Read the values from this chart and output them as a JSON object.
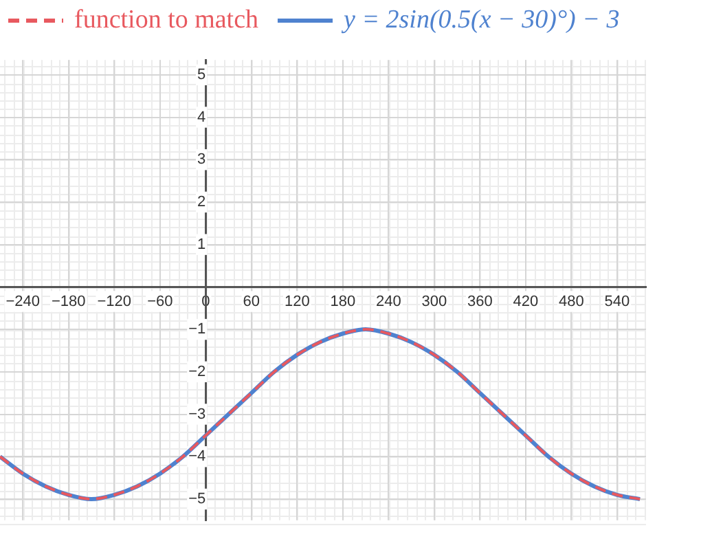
{
  "chart_data": {
    "type": "line",
    "x": [
      -270,
      -240,
      -210,
      -180,
      -150,
      -120,
      -90,
      -60,
      -30,
      0,
      30,
      60,
      90,
      120,
      150,
      180,
      210,
      240,
      270,
      300,
      330,
      360,
      390,
      420,
      450,
      480,
      510,
      540,
      570
    ],
    "series": [
      {
        "name": "function to match",
        "color": "#e8595f",
        "line_style": "dashed",
        "values": [
          -4,
          -4.4,
          -4.7,
          -4.9,
          -5,
          -4.9,
          -4.7,
          -4.4,
          -4,
          -3.5,
          -3,
          -2.5,
          -2,
          -1.6,
          -1.3,
          -1.1,
          -1,
          -1.1,
          -1.3,
          -1.6,
          -2,
          -2.5,
          -3,
          -3.5,
          -4,
          -4.4,
          -4.7,
          -4.9,
          -5
        ]
      },
      {
        "name": "y = 2sin(0.5(x − 30)°) − 3",
        "color": "#4f82cf",
        "line_style": "solid",
        "values": [
          -4,
          -4.4,
          -4.7,
          -4.9,
          -5,
          -4.9,
          -4.7,
          -4.4,
          -4,
          -3.5,
          -3,
          -2.5,
          -2,
          -1.6,
          -1.3,
          -1.1,
          -1,
          -1.1,
          -1.3,
          -1.6,
          -2,
          -2.5,
          -3,
          -3.5,
          -4,
          -4.4,
          -4.7,
          -4.9,
          -5
        ]
      }
    ],
    "xlim": [
      -270,
      578
    ],
    "xticks": [
      -240,
      -180,
      -120,
      -60,
      0,
      60,
      120,
      180,
      240,
      300,
      360,
      420,
      480,
      540
    ],
    "ylim": [
      -5.5,
      5.35
    ],
    "yticks": [
      -5,
      -4,
      -3,
      -2,
      -1,
      1,
      2,
      3,
      4,
      5
    ],
    "grid": true,
    "legend": "top left",
    "marker": "none"
  }
}
